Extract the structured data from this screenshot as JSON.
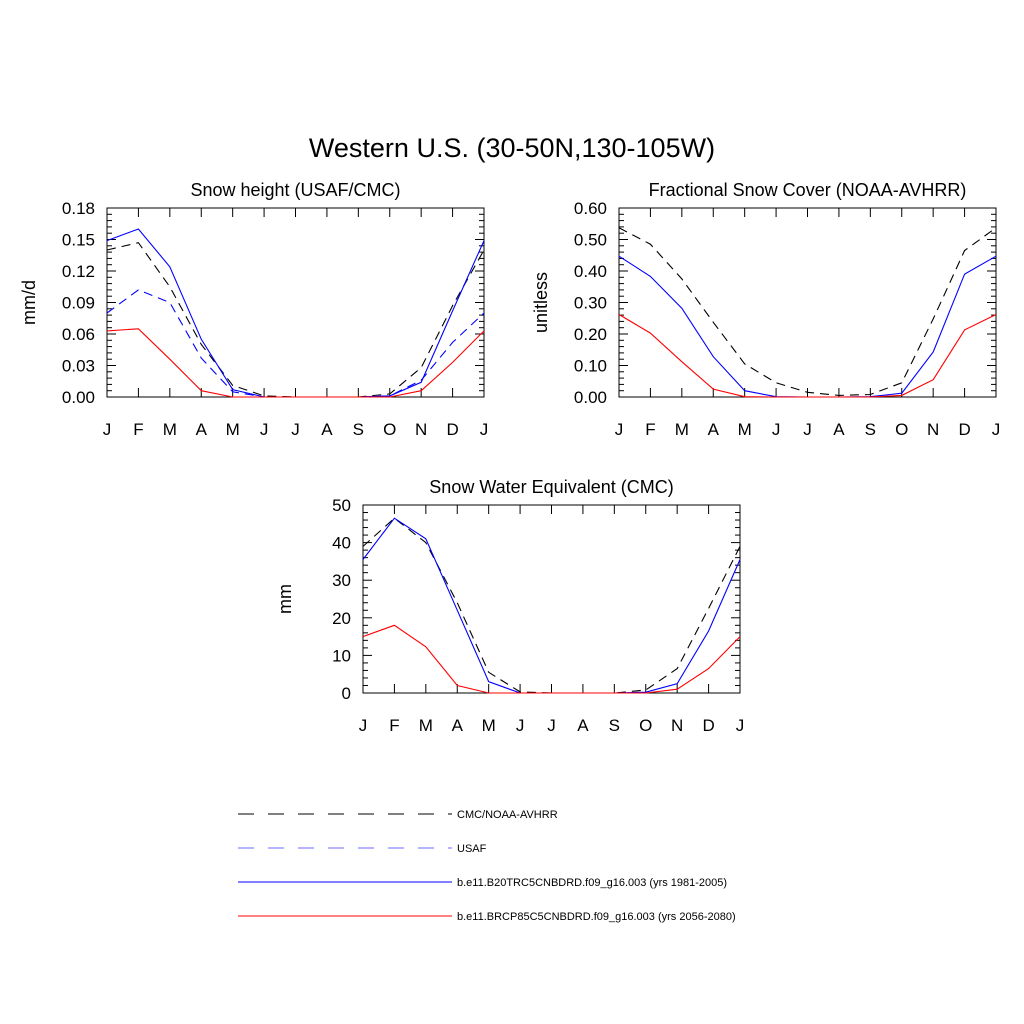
{
  "figure": {
    "title": "Western U.S. (30-50N,130-105W)"
  },
  "colors": {
    "obs_line": "#000000",
    "usaf_line": "#0000ff",
    "hist_line": "#0000ff",
    "future_line": "#ff0000"
  },
  "legend": {
    "placement": "bottom-center",
    "entries": [
      {
        "label": "CMC/NOAA-AVHRR",
        "color": "#000000",
        "style": "dashed"
      },
      {
        "label": "USAF",
        "color": "#6a6aff",
        "style": "dashed"
      },
      {
        "label": "b.e11.B20TRC5CNBDRD.f09_g16.003 (yrs 1981-2005)",
        "color": "#0000ff",
        "style": "solid"
      },
      {
        "label": "b.e11.BRCP85C5CNBDRD.f09_g16.003 (yrs 2056-2080)",
        "color": "#ff0000",
        "style": "solid"
      }
    ]
  },
  "chart_data": [
    {
      "type": "line",
      "title": "Snow height (USAF/CMC)",
      "xlabel": "",
      "ylabel": "mm/d",
      "categories": [
        "J",
        "F",
        "M",
        "A",
        "M",
        "J",
        "J",
        "A",
        "S",
        "O",
        "N",
        "D",
        "J"
      ],
      "ylim": [
        0,
        0.18
      ],
      "yticks": [
        "0.00",
        "0.03",
        "0.06",
        "0.09",
        "0.12",
        "0.15",
        "0.18"
      ],
      "grid": false,
      "series": [
        {
          "name": "CMC/NOAA-AVHRR",
          "color": "#000000",
          "style": "dashed",
          "values": [
            0.14,
            0.147,
            0.105,
            0.05,
            0.011,
            0.001,
            0.0,
            0.0,
            0.0,
            0.003,
            0.028,
            0.087,
            0.14
          ]
        },
        {
          "name": "USAF",
          "color": "#0000ff",
          "style": "dashed",
          "values": [
            0.08,
            0.102,
            0.09,
            0.037,
            0.005,
            0.0,
            0.0,
            0.0,
            0.0,
            0.001,
            0.016,
            0.052,
            0.08
          ]
        },
        {
          "name": "b.e11.B20TRC5CNBDRD.f09_g16.003 (yrs 1981-2005)",
          "color": "#0000ff",
          "style": "solid",
          "values": [
            0.149,
            0.16,
            0.124,
            0.055,
            0.007,
            0.0,
            0.0,
            0.0,
            0.0,
            0.001,
            0.014,
            0.082,
            0.149
          ]
        },
        {
          "name": "b.e11.BRCP85C5CNBDRD.f09_g16.003 (yrs 2056-2080)",
          "color": "#ff0000",
          "style": "solid",
          "values": [
            0.063,
            0.065,
            0.036,
            0.006,
            0.0,
            0.0,
            0.0,
            0.0,
            0.0,
            0.0,
            0.006,
            0.033,
            0.063
          ]
        }
      ]
    },
    {
      "type": "line",
      "title": "Fractional Snow Cover (NOAA-AVHRR)",
      "xlabel": "",
      "ylabel": "unitless",
      "categories": [
        "J",
        "F",
        "M",
        "A",
        "M",
        "J",
        "J",
        "A",
        "S",
        "O",
        "N",
        "D",
        "J"
      ],
      "ylim": [
        0,
        0.6
      ],
      "yticks": [
        "0.00",
        "0.10",
        "0.20",
        "0.30",
        "0.40",
        "0.50",
        "0.60"
      ],
      "grid": false,
      "series": [
        {
          "name": "CMC/NOAA-AVHRR",
          "color": "#000000",
          "style": "dashed",
          "values": [
            0.537,
            0.485,
            0.375,
            0.237,
            0.105,
            0.045,
            0.015,
            0.005,
            0.008,
            0.045,
            0.248,
            0.465,
            0.537
          ]
        },
        {
          "name": "b.e11.B20TRC5CNBDRD.f09_g16.003 (yrs 1981-2005)",
          "color": "#0000ff",
          "style": "solid",
          "values": [
            0.447,
            0.383,
            0.282,
            0.128,
            0.02,
            0.001,
            0.0,
            0.0,
            0.001,
            0.012,
            0.143,
            0.39,
            0.447
          ]
        },
        {
          "name": "b.e11.BRCP85C5CNBDRD.f09_g16.003 (yrs 2056-2080)",
          "color": "#ff0000",
          "style": "solid",
          "values": [
            0.262,
            0.203,
            0.112,
            0.025,
            0.001,
            0.0,
            0.0,
            0.0,
            0.0,
            0.005,
            0.055,
            0.213,
            0.262
          ]
        }
      ]
    },
    {
      "type": "line",
      "title": "Snow Water Equivalent (CMC)",
      "xlabel": "",
      "ylabel": "mm",
      "categories": [
        "J",
        "F",
        "M",
        "A",
        "M",
        "J",
        "J",
        "A",
        "S",
        "O",
        "N",
        "D",
        "J"
      ],
      "ylim": [
        0,
        50
      ],
      "yticks": [
        "0",
        "10",
        "20",
        "30",
        "40",
        "50"
      ],
      "grid": false,
      "series": [
        {
          "name": "CMC/NOAA-AVHRR",
          "color": "#000000",
          "style": "dashed",
          "values": [
            39.0,
            46.5,
            40.0,
            24.0,
            5.5,
            0.3,
            0.0,
            0.0,
            0.0,
            0.8,
            6.5,
            22.5,
            39.0
          ]
        },
        {
          "name": "b.e11.B20TRC5CNBDRD.f09_g16.003 (yrs 1981-2005)",
          "color": "#0000ff",
          "style": "solid",
          "values": [
            35.5,
            46.5,
            41.0,
            22.0,
            3.0,
            0.0,
            0.0,
            0.0,
            0.0,
            0.2,
            2.5,
            16.5,
            35.5
          ]
        },
        {
          "name": "b.e11.BRCP85C5CNBDRD.f09_g16.003 (yrs 2056-2080)",
          "color": "#ff0000",
          "style": "solid",
          "values": [
            15.0,
            18.0,
            12.3,
            2.0,
            0.0,
            0.0,
            0.0,
            0.0,
            0.0,
            0.0,
            1.0,
            6.5,
            15.0
          ]
        }
      ]
    }
  ]
}
